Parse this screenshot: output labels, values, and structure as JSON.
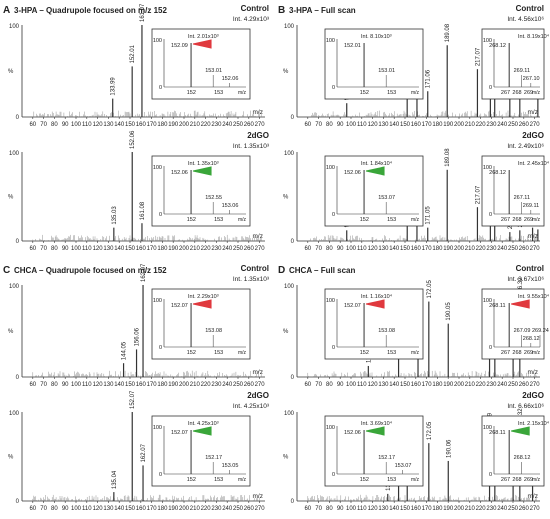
{
  "figure": {
    "panels": [
      {
        "letter": "A",
        "title": "3-HPA – Quadrupole focused on m/z 152",
        "xlabel": "m/z",
        "xticks": [
          "60",
          "70",
          "80",
          "90",
          "100",
          "110",
          "120",
          "130",
          "140",
          "150",
          "160",
          "170",
          "180",
          "190",
          "200",
          "210",
          "220",
          "230",
          "240",
          "250",
          "260",
          "270"
        ],
        "subplots": [
          {
            "condition": "Control",
            "intensity": "Int. 4.29x10³",
            "ylabel": "%",
            "ytick_top": "100",
            "ytick_bottom": "0",
            "inset": {
              "intensity": "Int. 2.01x10³",
              "ytick_top": "100",
              "ytick_bottom": "0",
              "xticks": [
                "152",
                "153"
              ],
              "xlabel": "m/z",
              "peak_labels": [
                "152.09",
                "153.01",
                "152.06"
              ],
              "arrow_color": "#e0393e"
            }
          },
          {
            "condition": "2dGO",
            "intensity": "Int. 1.35x10³",
            "ylabel": "%",
            "ytick_top": "100",
            "ytick_bottom": "0",
            "inset": {
              "intensity": "Int. 1.35x10³",
              "ytick_top": "100",
              "ytick_bottom": "0",
              "xticks": [
                "152",
                "153"
              ],
              "xlabel": "m/z",
              "peak_labels": [
                "152.06",
                "152.55",
                "153.06"
              ],
              "arrow_color": "#3aa63a"
            }
          }
        ]
      },
      {
        "letter": "B",
        "title": "3-HPA – Full scan",
        "xlabel": "m/z",
        "xticks": [
          "60",
          "70",
          "80",
          "90",
          "100",
          "110",
          "120",
          "130",
          "140",
          "150",
          "160",
          "170",
          "180",
          "190",
          "200",
          "210",
          "220",
          "230",
          "240",
          "250",
          "260",
          "270"
        ],
        "subplots": [
          {
            "condition": "Control",
            "intensity": "Int. 4.56x10⁶",
            "ylabel": "%",
            "ytick_top": "100",
            "ytick_bottom": "0",
            "inset": {
              "intensity": "Int. 8.10x10³",
              "ytick_top": "100",
              "ytick_bottom": "0",
              "xticks": [
                "152",
                "153"
              ],
              "xlabel": "m/z",
              "peak_labels": [
                "152.01",
                "153.01"
              ],
              "arrow_color": ""
            },
            "inset2": {
              "intensity": "Int. 8.19x10⁴",
              "ytick_top": "100",
              "ytick_bottom": "0",
              "xticks": [
                "267",
                "268",
                "269"
              ],
              "xlabel": "m/z",
              "peak_labels": [
                "268.12",
                "269.11",
                "267.10"
              ]
            }
          },
          {
            "condition": "2dGO",
            "intensity": "Int. 2.49x10⁶",
            "ylabel": "%",
            "ytick_top": "100",
            "ytick_bottom": "0",
            "inset": {
              "intensity": "Int. 1.84x10⁴",
              "ytick_top": "100",
              "ytick_bottom": "0",
              "xticks": [
                "152",
                "153"
              ],
              "xlabel": "m/z",
              "peak_labels": [
                "152.06",
                "153.07"
              ],
              "arrow_color": "#3aa63a"
            },
            "inset2": {
              "intensity": "Int. 2.45x10⁴",
              "ytick_top": "100",
              "ytick_bottom": "0",
              "xticks": [
                "267",
                "268",
                "269"
              ],
              "xlabel": "m/z",
              "peak_labels": [
                "268.12",
                "267.11",
                "269.11"
              ]
            }
          }
        ]
      },
      {
        "letter": "C",
        "title": "CHCA – Quadrupole focused on m/z 152",
        "xlabel": "m/z",
        "xticks": [
          "60",
          "70",
          "80",
          "90",
          "100",
          "110",
          "120",
          "130",
          "140",
          "150",
          "160",
          "170",
          "180",
          "190",
          "200",
          "210",
          "220",
          "230",
          "240",
          "250",
          "260",
          "270"
        ],
        "subplots": [
          {
            "condition": "Control",
            "intensity": "Int. 1.35x10³",
            "ylabel": "%",
            "ytick_top": "100",
            "ytick_bottom": "0",
            "inset": {
              "intensity": "Int. 2.29x10³",
              "ytick_top": "100",
              "ytick_bottom": "0",
              "xticks": [
                "152",
                "153"
              ],
              "xlabel": "m/z",
              "peak_labels": [
                "152.07",
                "153.08"
              ],
              "arrow_color": "#e0393e"
            }
          },
          {
            "condition": "2dGO",
            "intensity": "Int. 4.25x10³",
            "ylabel": "%",
            "ytick_top": "100",
            "ytick_bottom": "0",
            "inset": {
              "intensity": "Int. 4.25x10³",
              "ytick_top": "100",
              "ytick_bottom": "0",
              "xticks": [
                "152",
                "153"
              ],
              "xlabel": "m/z",
              "peak_labels": [
                "152.07",
                "152.17",
                "153.05"
              ],
              "arrow_color": "#3aa63a"
            }
          }
        ]
      },
      {
        "letter": "D",
        "title": "CHCA – Full scan",
        "xlabel": "m/z",
        "xticks": [
          "60",
          "70",
          "80",
          "90",
          "100",
          "110",
          "120",
          "130",
          "140",
          "150",
          "160",
          "170",
          "180",
          "190",
          "200",
          "210",
          "220",
          "230",
          "240",
          "250",
          "260",
          "270"
        ],
        "subplots": [
          {
            "condition": "Control",
            "intensity": "Int. 3.67x10⁶",
            "ylabel": "%",
            "ytick_top": "100",
            "ytick_bottom": "0",
            "inset": {
              "intensity": "Int. 1.16x10⁴",
              "ytick_top": "100",
              "ytick_bottom": "0",
              "xticks": [
                "152",
                "153"
              ],
              "xlabel": "m/z",
              "peak_labels": [
                "152.07",
                "153.08"
              ],
              "arrow_color": "#e0393e"
            },
            "inset2": {
              "intensity": "Int. 9.55x10⁴",
              "ytick_top": "100",
              "ytick_bottom": "0",
              "xticks": [
                "267",
                "268",
                "269"
              ],
              "xlabel": "m/z",
              "peak_labels": [
                "268.11",
                "267.09",
                "268.12",
                "269.24"
              ],
              "arrow_color": "#e0393e"
            }
          },
          {
            "condition": "2dGO",
            "intensity": "Int. 6.66x10⁶",
            "ylabel": "%",
            "ytick_top": "100",
            "ytick_bottom": "0",
            "inset": {
              "intensity": "Int. 3.69x10⁴",
              "ytick_top": "100",
              "ytick_bottom": "0",
              "xticks": [
                "152",
                "153"
              ],
              "xlabel": "m/z",
              "peak_labels": [
                "152.06",
                "152.17",
                "153.07"
              ],
              "arrow_color": "#3aa63a"
            },
            "inset2": {
              "intensity": "Int. 2.15x10⁴",
              "ytick_top": "100",
              "ytick_bottom": "0",
              "xticks": [
                "267",
                "268",
                "269"
              ],
              "xlabel": "m/z",
              "peak_labels": [
                "268.11",
                "268.12"
              ],
              "arrow_color": "#3aa63a"
            }
          }
        ]
      }
    ]
  },
  "chart_data": [
    {
      "type": "bar",
      "panel": "A",
      "subplot": "Control",
      "xlim": [
        50,
        275
      ],
      "ylim": [
        0,
        100
      ],
      "x": [
        133.99,
        152.01,
        161.07
      ],
      "values": [
        20,
        55,
        100
      ],
      "peak_labels": [
        "133.99",
        "152.01",
        "161.07"
      ]
    },
    {
      "type": "bar",
      "panel": "A",
      "subplot": "2dGO",
      "xlim": [
        50,
        275
      ],
      "ylim": [
        0,
        100
      ],
      "x": [
        135.03,
        152.06,
        161.08
      ],
      "values": [
        15,
        100,
        20
      ],
      "peak_labels": [
        "135.03",
        "152.06",
        "161.08"
      ]
    },
    {
      "type": "bar",
      "panel": "B",
      "subplot": "Control",
      "xlim": [
        50,
        275
      ],
      "ylim": [
        0,
        100
      ],
      "x": [
        96.05,
        152.01,
        161.08,
        171.06,
        189.08,
        217.07,
        229.05,
        233.07,
        247.06,
        256.31,
        273.03
      ],
      "values": [
        15,
        30,
        35,
        28,
        78,
        52,
        50,
        44,
        25,
        28,
        40
      ],
      "peak_labels": [
        "96.05",
        "152.01",
        "161.08",
        "171.06",
        "189.08",
        "217.07",
        "229.05",
        "233.07",
        "247.06",
        "256.31",
        "273.03"
      ]
    },
    {
      "type": "bar",
      "panel": "B",
      "subplot": "2dGO",
      "xlim": [
        50,
        275
      ],
      "ylim": [
        0,
        100
      ],
      "x": [
        96.05,
        152.06,
        161.08,
        171.05,
        189.08,
        217.07,
        229.04,
        233.07,
        247.06,
        256.31,
        268.12,
        273.03
      ],
      "values": [
        12,
        65,
        22,
        15,
        80,
        38,
        20,
        48,
        10,
        12,
        15,
        13
      ],
      "peak_labels": [
        "96.05",
        "152.06",
        "161.08",
        "171.05",
        "189.08",
        "217.07",
        "229.04",
        "233.07",
        "247.06",
        "256.31",
        "268.12",
        "273.03"
      ]
    },
    {
      "type": "bar",
      "panel": "C",
      "subplot": "Control",
      "xlim": [
        50,
        275
      ],
      "ylim": [
        0,
        100
      ],
      "x": [
        144.05,
        156.06,
        162.07
      ],
      "values": [
        15,
        30,
        100
      ],
      "peak_labels": [
        "144.05",
        "156.06",
        "162.07"
      ]
    },
    {
      "type": "bar",
      "panel": "C",
      "subplot": "2dGO",
      "xlim": [
        50,
        275
      ],
      "ylim": [
        0,
        100
      ],
      "x": [
        135.04,
        152.07,
        162.07
      ],
      "values": [
        10,
        100,
        40
      ],
      "peak_labels": [
        "135.04",
        "152.07",
        "162.07"
      ]
    },
    {
      "type": "bar",
      "panel": "D",
      "subplot": "Control",
      "xlim": [
        50,
        275
      ],
      "ylim": [
        0,
        100
      ],
      "x": [
        116.05,
        144.05,
        162.06,
        172.05,
        190.05,
        228.29,
        233.18,
        250.1,
        256.32
      ],
      "values": [
        12,
        50,
        28,
        82,
        58,
        68,
        32,
        22,
        85
      ],
      "peak_labels": [
        "116.05",
        "144.05",
        "162.06",
        "172.05",
        "190.05",
        "228.29",
        "233.18",
        "250.10",
        "256.32"
      ]
    },
    {
      "type": "bar",
      "panel": "D",
      "subplot": "2dGO",
      "xlim": [
        50,
        275
      ],
      "ylim": [
        0,
        100
      ],
      "x": [
        134.04,
        144.05,
        152.06,
        172.05,
        190.06,
        228.29,
        233.18,
        250.1,
        256.32,
        268.12
      ],
      "values": [
        8,
        25,
        60,
        65,
        45,
        75,
        28,
        18,
        80,
        40
      ],
      "peak_labels": [
        "134.04",
        "144.05",
        "152.06",
        "172.05",
        "190.06",
        "228.29",
        "233.18",
        "250.10",
        "256.32",
        "268.12"
      ]
    }
  ]
}
